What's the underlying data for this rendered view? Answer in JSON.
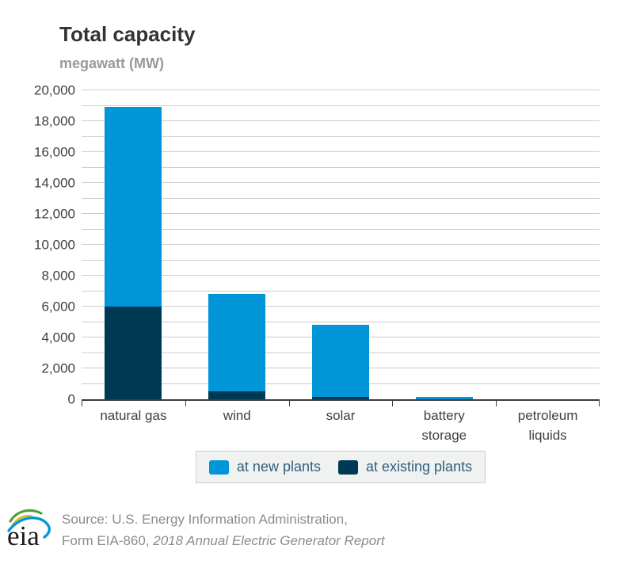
{
  "title": "Total capacity",
  "subtitle": "megawatt (MW)",
  "colors": {
    "new_plants": "#0096d7",
    "existing_plants": "#003953",
    "gridline": "#cdcdcd",
    "axis_line": "#3d3d3d",
    "tick_text": "#404040",
    "title_text": "#333333",
    "subtitle_text": "#999999",
    "legend_text": "#30607c",
    "legend_bg": "#f0f1f1",
    "footer_text": "#8c8c8c"
  },
  "chart_data": {
    "type": "bar",
    "stacked": true,
    "title": "Total capacity",
    "ylabel": "megawatt (MW)",
    "xlabel": "",
    "categories": [
      "natural gas",
      "wind",
      "solar",
      "battery storage",
      "petroleum liquids"
    ],
    "series": [
      {
        "name": "at new plants",
        "color": "#0096d7",
        "values": [
          12900,
          6300,
          4650,
          150,
          0
        ]
      },
      {
        "name": "at existing plants",
        "color": "#003953",
        "values": [
          6000,
          500,
          150,
          0,
          0
        ]
      }
    ],
    "stack_order_bottom_to_top": [
      "at existing plants",
      "at new plants"
    ],
    "totals": [
      18900,
      6800,
      4800,
      150,
      0
    ],
    "ylim": [
      0,
      20000
    ],
    "ytick_major": 2000,
    "ytick_minor": 1000,
    "grid": true,
    "legend_position": "bottom"
  },
  "footer": {
    "logo": "eia-logo",
    "line1": "Source: U.S. Energy Information Administration,",
    "line2_prefix": "Form EIA-860, ",
    "line2_italic": "2018 Annual Electric Generator Report"
  }
}
